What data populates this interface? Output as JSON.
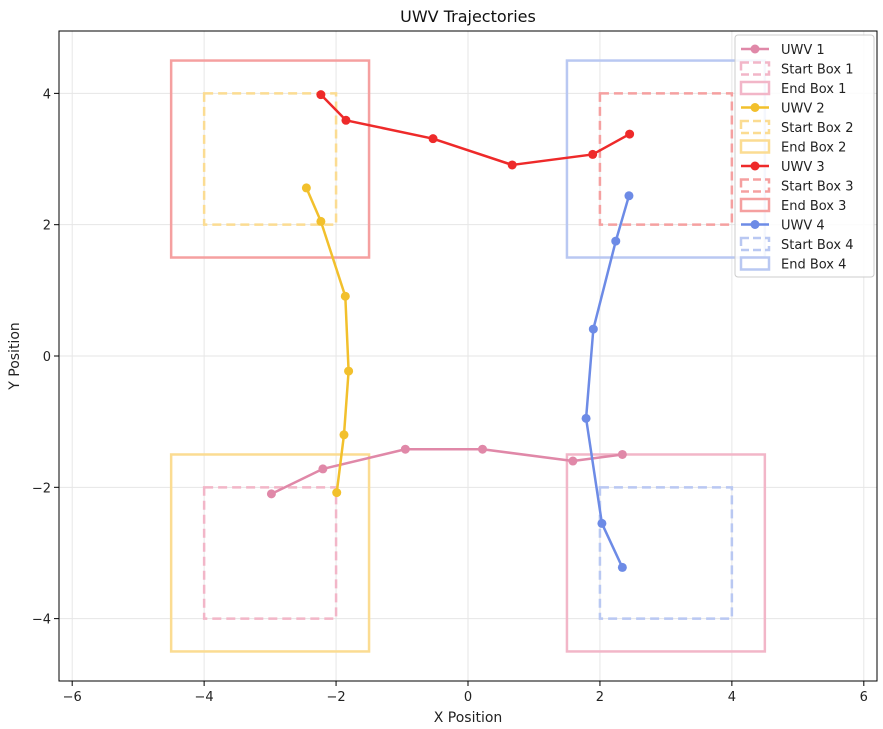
{
  "chart_data": {
    "type": "line",
    "title": "UWV Trajectories",
    "xlabel": "X Position",
    "ylabel": "Y Position",
    "xlim": [
      -6.2,
      6.2
    ],
    "ylim": [
      -4.95,
      4.95
    ],
    "xticks": [
      -6,
      -4,
      -2,
      0,
      2,
      4,
      6
    ],
    "yticks": [
      -4,
      -2,
      0,
      2,
      4
    ],
    "grid": true,
    "legend_position": "top-right",
    "series": [
      {
        "name": "UWV 1",
        "color": "#e088a8",
        "x": [
          -2.98,
          -2.2,
          -0.95,
          0.22,
          1.59,
          2.34
        ],
        "y": [
          -2.1,
          -1.72,
          -1.42,
          -1.42,
          -1.6,
          -1.5
        ]
      },
      {
        "name": "UWV 2",
        "color": "#f2c02c",
        "x": [
          -2.45,
          -2.23,
          -1.86,
          -1.81,
          -1.88,
          -1.99
        ],
        "y": [
          2.56,
          2.05,
          0.91,
          -0.23,
          -1.2,
          -2.08
        ]
      },
      {
        "name": "UWV 3",
        "color": "#ee2a2a",
        "x": [
          -2.23,
          -1.85,
          -0.53,
          0.67,
          1.89,
          2.45
        ],
        "y": [
          3.98,
          3.59,
          3.31,
          2.91,
          3.07,
          3.38
        ]
      },
      {
        "name": "UWV 4",
        "color": "#6d8be6",
        "x": [
          2.44,
          2.24,
          1.9,
          1.79,
          2.03,
          2.34
        ],
        "y": [
          2.44,
          1.75,
          0.41,
          -0.95,
          -2.55,
          -3.22
        ]
      }
    ],
    "boxes": [
      {
        "name": "Start Box 1",
        "color": "#f2b6c8",
        "style": "dashed",
        "x": [
          -4,
          -2
        ],
        "y": [
          -4,
          -2
        ]
      },
      {
        "name": "End Box 1",
        "color": "#f2b6c8",
        "style": "solid",
        "x": [
          1.5,
          4.5
        ],
        "y": [
          -4.5,
          -1.5
        ]
      },
      {
        "name": "Start Box 2",
        "color": "#fbdc92",
        "style": "dashed",
        "x": [
          -4,
          -2
        ],
        "y": [
          2,
          4
        ]
      },
      {
        "name": "End Box 2",
        "color": "#fbdc92",
        "style": "solid",
        "x": [
          -4.5,
          -1.5
        ],
        "y": [
          -4.5,
          -1.5
        ]
      },
      {
        "name": "Start Box 3",
        "color": "#f5a0a0",
        "style": "dashed",
        "x": [
          2,
          4
        ],
        "y": [
          2,
          4
        ]
      },
      {
        "name": "End Box 3",
        "color": "#f5a0a0",
        "style": "solid",
        "x": [
          -4.5,
          -1.5
        ],
        "y": [
          1.5,
          4.5
        ]
      },
      {
        "name": "Start Box 4",
        "color": "#b9c8f2",
        "style": "dashed",
        "x": [
          2,
          4
        ],
        "y": [
          -4,
          -2
        ]
      },
      {
        "name": "End Box 4",
        "color": "#b9c8f2",
        "style": "solid",
        "x": [
          1.5,
          4.5
        ],
        "y": [
          1.5,
          4.5
        ]
      }
    ],
    "legend": [
      {
        "label": "UWV 1",
        "kind": "line",
        "ref": "UWV 1"
      },
      {
        "label": "Start Box 1",
        "kind": "dashed",
        "ref": "Start Box 1"
      },
      {
        "label": "End Box 1",
        "kind": "solid-box",
        "ref": "End Box 1"
      },
      {
        "label": "UWV 2",
        "kind": "line",
        "ref": "UWV 2"
      },
      {
        "label": "Start Box 2",
        "kind": "dashed",
        "ref": "Start Box 2"
      },
      {
        "label": "End Box 2",
        "kind": "solid-box",
        "ref": "End Box 2"
      },
      {
        "label": "UWV 3",
        "kind": "line",
        "ref": "UWV 3"
      },
      {
        "label": "Start Box 3",
        "kind": "dashed",
        "ref": "Start Box 3"
      },
      {
        "label": "End Box 3",
        "kind": "solid-box",
        "ref": "End Box 3"
      },
      {
        "label": "UWV 4",
        "kind": "line",
        "ref": "UWV 4"
      },
      {
        "label": "Start Box 4",
        "kind": "dashed",
        "ref": "Start Box 4"
      },
      {
        "label": "End Box 4",
        "kind": "solid-box",
        "ref": "End Box 4"
      }
    ]
  }
}
